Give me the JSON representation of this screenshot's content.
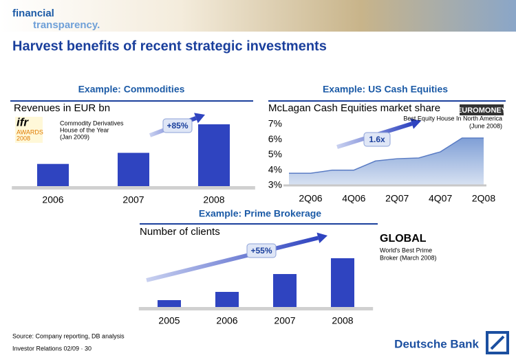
{
  "header": {
    "logo_top": "financial",
    "logo_bottom": "transparency.",
    "title": "Harvest benefits of recent strategic investments"
  },
  "chart_data": [
    {
      "type": "bar",
      "heading": "Example: Commodities",
      "title": "Revenues in EUR bn",
      "categories": [
        "2006",
        "2007",
        "2008"
      ],
      "values": [
        0.7,
        1.05,
        1.95
      ],
      "color": "#2f44c0",
      "annotation": "+85%",
      "award": {
        "logo": [
          "ifr",
          "AWARDS",
          "2008"
        ],
        "text": [
          "Commodity Derivatives",
          "House of the Year",
          "(Jan 2009)"
        ]
      }
    },
    {
      "type": "area",
      "heading": "Example: US Cash Equities",
      "title": "McLagan Cash Equities market share",
      "categories": [
        null,
        "2Q06",
        null,
        "4Q06",
        null,
        "2Q07",
        null,
        "4Q07",
        null,
        "2Q08"
      ],
      "values": [
        3.8,
        3.8,
        4.0,
        4.0,
        4.6,
        4.75,
        4.8,
        5.2,
        6.1,
        6.1
      ],
      "ylim": [
        3,
        7
      ],
      "yticks": [
        {
          "value": 3,
          "label": "3%"
        },
        {
          "value": 4,
          "label": "4%"
        },
        {
          "value": 5,
          "label": "5%"
        },
        {
          "value": 6,
          "label": "6%"
        },
        {
          "value": 7,
          "label": "7%"
        }
      ],
      "color": "#a9c0e4",
      "annotation": "1.6x",
      "award": {
        "logo": [
          "EUROMONEY"
        ],
        "text": [
          "Best Equity House In North America",
          "(June 2008)"
        ]
      }
    },
    {
      "type": "bar",
      "heading": "Example: Prime Brokerage",
      "title": "Number of clients",
      "categories": [
        "2005",
        "2006",
        "2007",
        "2008"
      ],
      "values": [
        10,
        22,
        48,
        71
      ],
      "color": "#2f44c0",
      "annotation": "+55%",
      "award": {
        "logo": [
          "GLOBAL"
        ],
        "text": [
          "World's Best Prime",
          "Broker (March 2008)"
        ]
      }
    }
  ],
  "footer": {
    "source": "Source: Company reporting, DB analysis",
    "page": "Investor Relations 02/09 · 30",
    "brand": "Deutsche Bank"
  }
}
